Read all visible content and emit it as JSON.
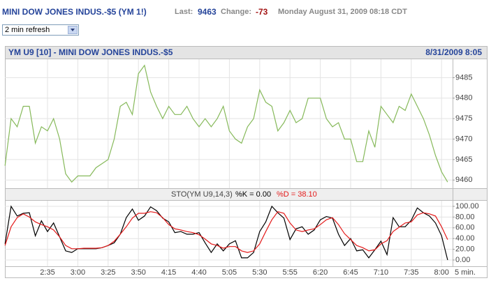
{
  "header": {
    "symbol": "MINI DOW JONES INDUS.-$5 (YM 1!)",
    "last_label": "Last:",
    "last": 9463,
    "change_label": "Change:",
    "change": -73,
    "date": "Monday August 31, 2009 08:18 CDT"
  },
  "refresh": "2 min refresh",
  "chart_data": [
    {
      "type": "line",
      "title": "YM U9 [10] - MINI DOW JONES INDUS.-$5",
      "timestamp": "8/31/2009 8:05",
      "series": [
        {
          "color": "#86b95a",
          "values": [
            9463.5,
            9475,
            9473,
            9478,
            9478,
            9469,
            9473,
            9472,
            9475,
            9470,
            9461.5,
            9459.5,
            9461,
            9461,
            9461,
            9463,
            9464,
            9465,
            9470,
            9478,
            9479,
            9476,
            9486,
            9488,
            9481.5,
            9478,
            9475,
            9478,
            9476,
            9476,
            9478,
            9475,
            9473,
            9475,
            9473,
            9475,
            9478,
            9472,
            9470,
            9469,
            9473,
            9475,
            9482,
            9479,
            9478,
            9472,
            9474,
            9477,
            9474,
            9475,
            9480,
            9480,
            9480,
            9475,
            9473,
            9474,
            9470,
            9470,
            9464.5,
            9464.5,
            9472,
            9468,
            9478,
            9476,
            9474,
            9478,
            9477,
            9481,
            9478,
            9475,
            9471,
            9466,
            9462,
            9459.5
          ]
        }
      ],
      "ylim": [
        9458,
        9489.5
      ],
      "yticks": [
        9460,
        9465,
        9470,
        9475,
        9480,
        9485
      ],
      "grid": true
    },
    {
      "type": "line",
      "title": "STO(YM U9,14,3)",
      "x_label": "5 min.",
      "categories": [
        null,
        null,
        null,
        null,
        null,
        null,
        null,
        "2:35",
        null,
        null,
        null,
        null,
        "3:00",
        null,
        null,
        null,
        null,
        "3:25",
        null,
        null,
        null,
        null,
        "3:50",
        null,
        null,
        null,
        null,
        "4:15",
        null,
        null,
        null,
        null,
        "4:40",
        null,
        null,
        null,
        null,
        "5:05",
        null,
        null,
        null,
        null,
        "5:30",
        null,
        null,
        null,
        null,
        "5:55",
        null,
        null,
        null,
        null,
        "6:20",
        null,
        null,
        null,
        null,
        "6:45",
        null,
        null,
        null,
        null,
        "7:10",
        null,
        null,
        null,
        null,
        "7:35",
        null,
        null,
        null,
        null,
        "8:00",
        null
      ],
      "series": [
        {
          "name": "%K = 0.00",
          "color": "#000000",
          "values": [
            30,
            100,
            82,
            87,
            88,
            45,
            73,
            53,
            69,
            43,
            17,
            14,
            21,
            21,
            21,
            21,
            23,
            27,
            32,
            48,
            79,
            95,
            74,
            82,
            99,
            92,
            78,
            71,
            51,
            53,
            48,
            48,
            51,
            32,
            14,
            30,
            17,
            30,
            36,
            4,
            4,
            14,
            53,
            71,
            100,
            88,
            78,
            38,
            58,
            62,
            48,
            56,
            75,
            81,
            78,
            48,
            27,
            40,
            17,
            19,
            4,
            19,
            35,
            10,
            79,
            62,
            62,
            74,
            97,
            88,
            82,
            69,
            45,
            0
          ]
        },
        {
          "name": "%D = 38.10",
          "color": "#e41a1a",
          "values": [
            27,
            62,
            79,
            86,
            80,
            71,
            66,
            62,
            56,
            43,
            27,
            21,
            21,
            22,
            22,
            22,
            23,
            27,
            35,
            48,
            62,
            78,
            87,
            87,
            90,
            88,
            79,
            66,
            58,
            56,
            53,
            51,
            47,
            39,
            30,
            27,
            22,
            25,
            25,
            17,
            14,
            17,
            30,
            53,
            75,
            90,
            87,
            69,
            56,
            53,
            56,
            58,
            66,
            75,
            79,
            66,
            49,
            38,
            27,
            23,
            17,
            19,
            30,
            36,
            53,
            61,
            69,
            71,
            84,
            88,
            86,
            82,
            62,
            38.1
          ]
        }
      ],
      "ylim": [
        -11.7,
        110.4
      ],
      "yticks": [
        {
          "value": 0,
          "label": "0.00"
        },
        {
          "value": 20,
          "label": "20.00"
        },
        {
          "value": 40,
          "label": "40.00"
        },
        {
          "value": 60,
          "label": "60.00"
        },
        {
          "value": 80,
          "label": "80.00"
        },
        {
          "value": 100,
          "label": "100.00"
        }
      ],
      "grid": true
    }
  ]
}
